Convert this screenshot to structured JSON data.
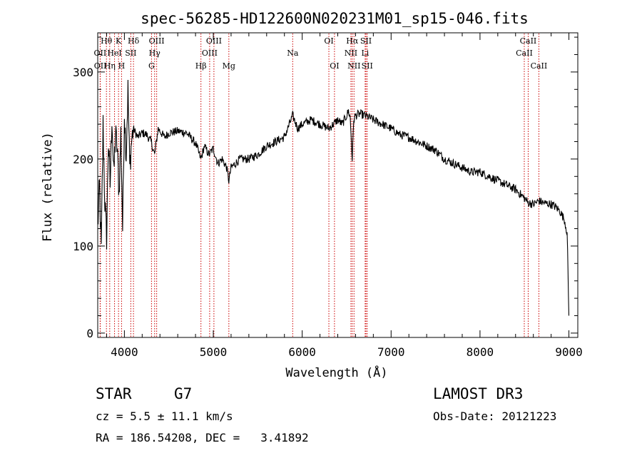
{
  "chart_data": {
    "type": "line",
    "title": "spec-56285-HD122600N020231M01_sp15-046.fits",
    "xlabel": "Wavelength (Å)",
    "ylabel": "Flux (relative)",
    "xlim": [
      3700,
      9100
    ],
    "ylim": [
      -5,
      345
    ],
    "xticks": [
      4000,
      5000,
      6000,
      7000,
      8000,
      9000
    ],
    "yticks": [
      0,
      100,
      200,
      300
    ],
    "grid": false,
    "series": [
      {
        "name": "spectrum",
        "x": [
          3700,
          3720,
          3740,
          3760,
          3780,
          3800,
          3820,
          3840,
          3860,
          3880,
          3900,
          3920,
          3940,
          3960,
          3980,
          4000,
          4020,
          4040,
          4060,
          4080,
          4100,
          4150,
          4200,
          4250,
          4300,
          4340,
          4380,
          4450,
          4500,
          4600,
          4700,
          4800,
          4861,
          4900,
          4950,
          5000,
          5050,
          5100,
          5150,
          5175,
          5200,
          5300,
          5400,
          5500,
          5600,
          5700,
          5800,
          5893,
          5950,
          6000,
          6100,
          6200,
          6300,
          6400,
          6450,
          6500,
          6520,
          6540,
          6563,
          6580,
          6600,
          6650,
          6700,
          6750,
          6800,
          6900,
          7000,
          7100,
          7200,
          7300,
          7400,
          7500,
          7600,
          7700,
          7800,
          7900,
          8000,
          8100,
          8200,
          8300,
          8400,
          8500,
          8542,
          8600,
          8662,
          8700,
          8800,
          8850,
          8900,
          8950,
          8980,
          9000
        ],
        "values": [
          120,
          170,
          95,
          240,
          150,
          110,
          220,
          170,
          250,
          180,
          230,
          210,
          160,
          230,
          120,
          255,
          205,
          280,
          190,
          220,
          235,
          225,
          230,
          228,
          220,
          205,
          235,
          225,
          230,
          232,
          230,
          218,
          200,
          215,
          205,
          212,
          195,
          200,
          190,
          175,
          190,
          200,
          200,
          205,
          215,
          220,
          225,
          250,
          235,
          240,
          245,
          240,
          235,
          245,
          240,
          250,
          255,
          248,
          200,
          245,
          250,
          252,
          250,
          248,
          245,
          240,
          235,
          228,
          225,
          220,
          215,
          210,
          200,
          195,
          190,
          185,
          185,
          180,
          175,
          170,
          165,
          155,
          150,
          148,
          152,
          150,
          148,
          145,
          140,
          130,
          115,
          20
        ]
      }
    ],
    "lines": [
      {
        "label": "Hθ",
        "wave": 3798,
        "row": 1
      },
      {
        "label": "OII",
        "wave": 3727,
        "row": 2
      },
      {
        "label": "OII",
        "wave": 3729,
        "row": 3
      },
      {
        "label": "K",
        "wave": 3934,
        "row": 1
      },
      {
        "label": "HeI",
        "wave": 3889,
        "row": 2
      },
      {
        "label": "Hη",
        "wave": 3835,
        "row": 3
      },
      {
        "label": "SII",
        "wave": 4072,
        "row": 2
      },
      {
        "label": "H",
        "wave": 3968,
        "row": 3
      },
      {
        "label": "Hδ",
        "wave": 4102,
        "row": 1
      },
      {
        "label": "OIII",
        "wave": 4363,
        "row": 1
      },
      {
        "label": "Hγ",
        "wave": 4340,
        "row": 2
      },
      {
        "label": "G",
        "wave": 4305,
        "row": 3
      },
      {
        "label": "OIII",
        "wave": 5007,
        "row": 1
      },
      {
        "label": "OIII",
        "wave": 4959,
        "row": 2
      },
      {
        "label": "Hβ",
        "wave": 4861,
        "row": 3
      },
      {
        "label": "Mg",
        "wave": 5175,
        "row": 3
      },
      {
        "label": "Na",
        "wave": 5893,
        "row": 2
      },
      {
        "label": "OI",
        "wave": 6300,
        "row": 1
      },
      {
        "label": "OI",
        "wave": 6363,
        "row": 3
      },
      {
        "label": "Hα",
        "wave": 6563,
        "row": 1
      },
      {
        "label": "NII",
        "wave": 6548,
        "row": 2
      },
      {
        "label": "NII",
        "wave": 6583,
        "row": 3
      },
      {
        "label": "SII",
        "wave": 6717,
        "row": 1
      },
      {
        "label": "Li",
        "wave": 6708,
        "row": 2
      },
      {
        "label": "SII",
        "wave": 6731,
        "row": 3
      },
      {
        "label": "CaII",
        "wave": 8542,
        "row": 1
      },
      {
        "label": "CaII",
        "wave": 8498,
        "row": 2
      },
      {
        "label": "CaII",
        "wave": 8662,
        "row": 3
      }
    ]
  },
  "info": {
    "object_class": "STAR",
    "subclass": "G7",
    "survey": "LAMOST DR3",
    "redshift": "cz = 5.5 ± 11.1 km/s",
    "obs_date": "Obs-Date: 20121223",
    "coords": "RA = 186.54208, DEC =   3.41892"
  },
  "colors": {
    "axis": "#000000",
    "spectrum": "#000000",
    "line_markers": "#cc0000"
  }
}
